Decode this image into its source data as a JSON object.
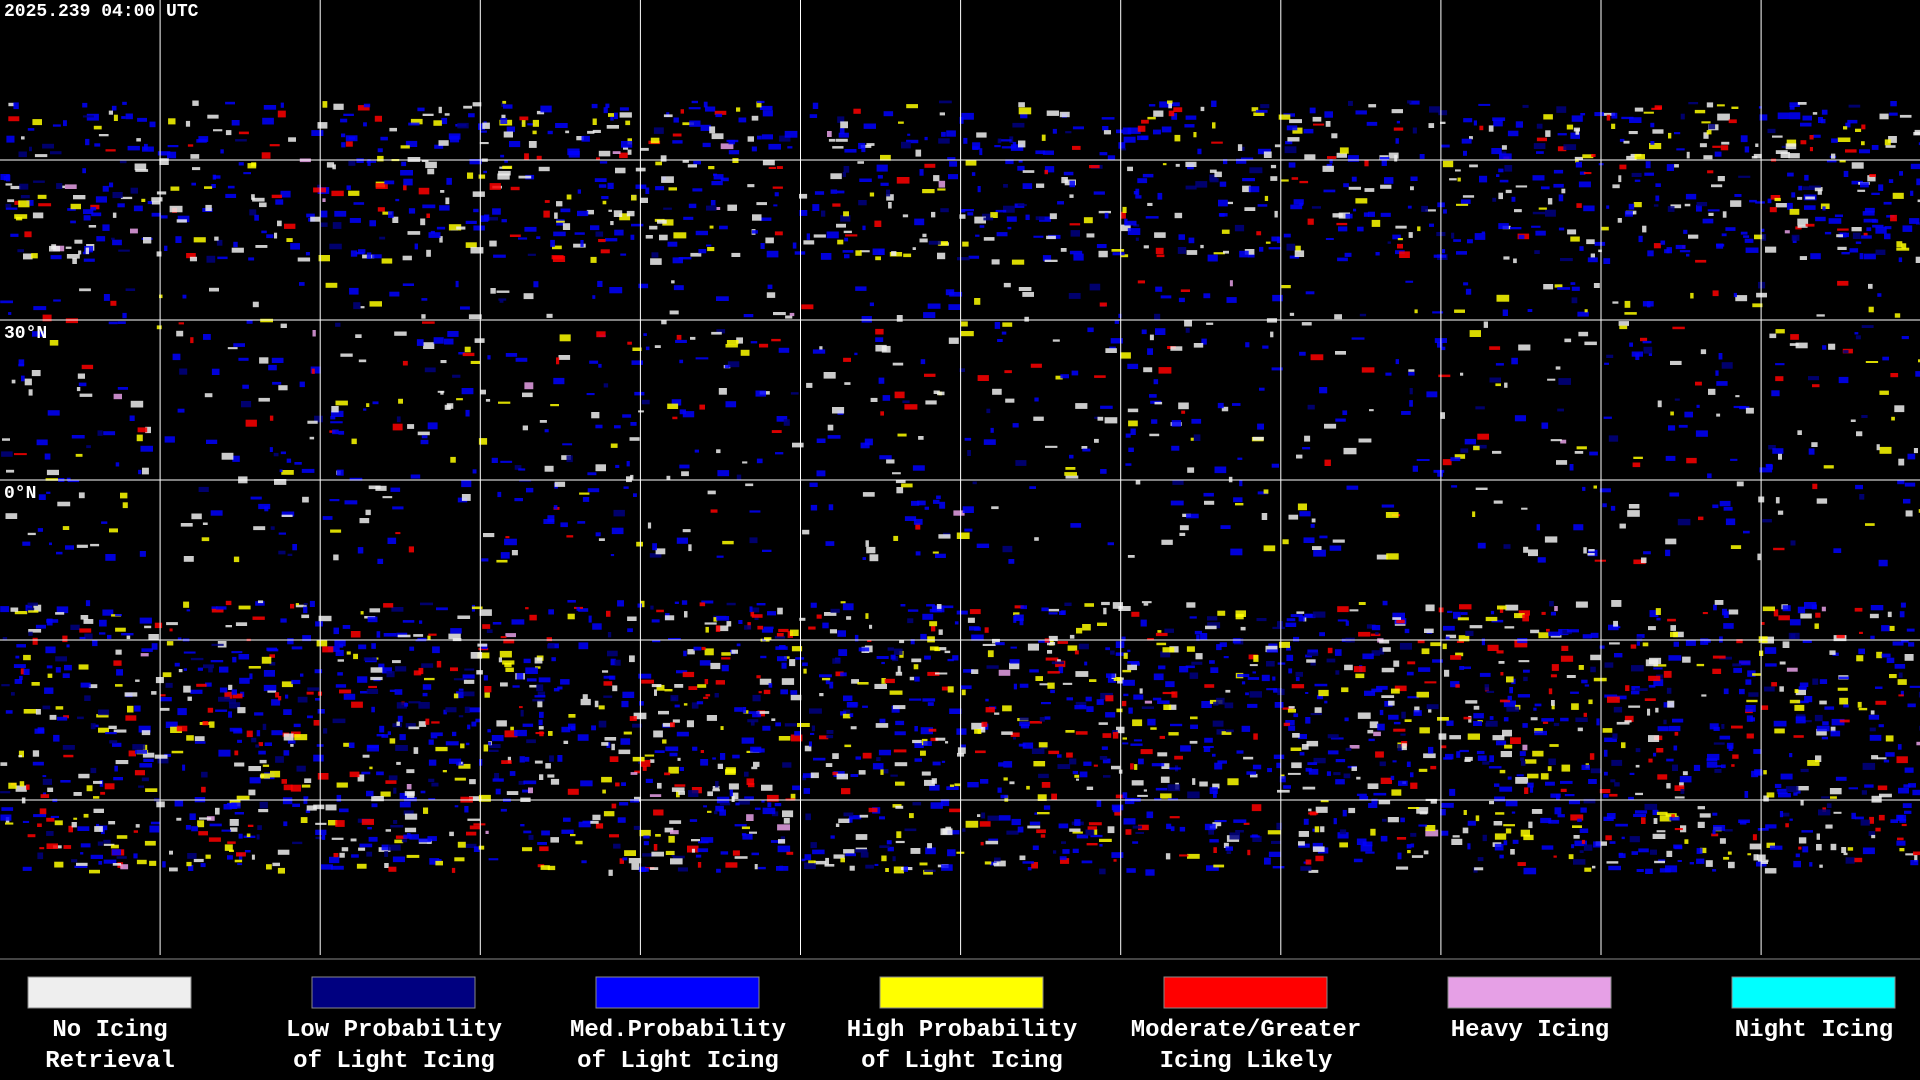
{
  "timestamp": "2025.239 04:00 UTC",
  "lat_labels": [
    "30°N",
    "0°N"
  ],
  "legend": [
    {
      "color": "#eeeeee",
      "line1": "No Icing",
      "line2": "Retrieval"
    },
    {
      "color": "#000080",
      "line1": "Low Probability",
      "line2": "of Light Icing"
    },
    {
      "color": "#0000ff",
      "line1": "Med.Probability",
      "line2": "of Light Icing"
    },
    {
      "color": "#ffff00",
      "line1": "High Probability",
      "line2": "of Light Icing"
    },
    {
      "color": "#ff0000",
      "line1": "Moderate/Greater",
      "line2": "Icing Likely"
    },
    {
      "color": "#e6a0e6",
      "line1": "Heavy Icing",
      "line2": ""
    },
    {
      "color": "#00ffff",
      "line1": "Night Icing",
      "line2": ""
    }
  ]
}
